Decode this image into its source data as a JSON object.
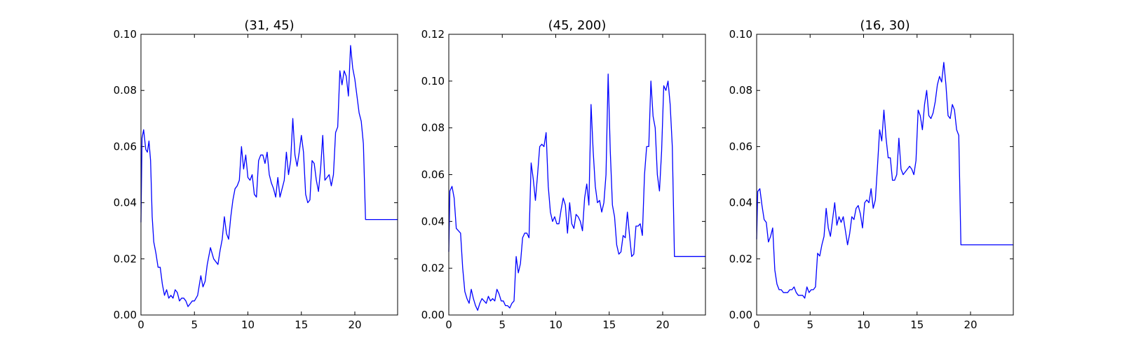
{
  "chart_data": [
    {
      "type": "line",
      "title": "(31, 45)",
      "xlim": [
        0,
        24
      ],
      "ylim": [
        0,
        0.1
      ],
      "xticks": [
        0,
        5,
        10,
        15,
        20
      ],
      "xtick_labels": [
        "0",
        "5",
        "10",
        "15",
        "20"
      ],
      "yticks": [
        0,
        0.02,
        0.04,
        0.06,
        0.08,
        0.1
      ],
      "ytick_labels": [
        "0.00",
        "0.02",
        "0.04",
        "0.06",
        "0.08",
        "0.10"
      ],
      "grid": false,
      "color": "#0000ff",
      "series": [
        {
          "x": [
            0,
            0.1,
            0.25,
            0.45,
            0.6,
            0.75,
            0.9,
            1.05,
            1.2,
            1.4,
            1.6,
            1.8,
            2.0,
            2.2,
            2.4,
            2.6,
            2.8,
            3.0,
            3.2,
            3.4,
            3.6,
            3.8,
            4.0,
            4.2,
            4.4,
            4.6,
            4.8,
            5.0,
            5.3,
            5.6,
            5.8,
            6.0,
            6.2,
            6.5,
            6.8,
            7.0,
            7.2,
            7.4,
            7.6,
            7.8,
            8.0,
            8.2,
            8.4,
            8.6,
            8.8,
            9.0,
            9.2,
            9.4,
            9.6,
            9.8,
            10.0,
            10.2,
            10.4,
            10.6,
            10.8,
            11.0,
            11.2,
            11.4,
            11.6,
            11.8,
            12.0,
            12.2,
            12.4,
            12.6,
            12.8,
            13.0,
            13.2,
            13.4,
            13.6,
            13.8,
            14.0,
            14.2,
            14.4,
            14.6,
            14.8,
            15.0,
            15.2,
            15.4,
            15.6,
            15.8,
            16.0,
            16.2,
            16.4,
            16.6,
            16.8,
            17.0,
            17.2,
            17.4,
            17.6,
            17.8,
            18.0,
            18.2,
            18.4,
            18.6,
            18.8,
            19.0,
            19.2,
            19.4,
            19.6,
            19.8,
            20.0,
            20.2,
            20.4,
            20.6,
            20.8,
            21.0,
            21.2,
            21.4,
            21.6,
            21.8,
            22.0,
            22.2,
            22.4,
            22.6,
            22.8,
            23.0,
            23.2,
            23.4,
            23.6,
            23.8,
            24.0
          ],
          "y": [
            0.033,
            0.063,
            0.066,
            0.059,
            0.058,
            0.062,
            0.055,
            0.035,
            0.026,
            0.022,
            0.017,
            0.017,
            0.011,
            0.007,
            0.009,
            0.006,
            0.007,
            0.006,
            0.009,
            0.008,
            0.005,
            0.006,
            0.006,
            0.005,
            0.003,
            0.004,
            0.005,
            0.005,
            0.007,
            0.014,
            0.01,
            0.012,
            0.018,
            0.024,
            0.02,
            0.019,
            0.018,
            0.023,
            0.027,
            0.035,
            0.029,
            0.027,
            0.035,
            0.041,
            0.045,
            0.046,
            0.048,
            0.06,
            0.052,
            0.057,
            0.049,
            0.048,
            0.05,
            0.043,
            0.042,
            0.055,
            0.057,
            0.057,
            0.054,
            0.058,
            0.05,
            0.047,
            0.045,
            0.042,
            0.049,
            0.042,
            0.045,
            0.048,
            0.058,
            0.05,
            0.055,
            0.07,
            0.057,
            0.053,
            0.058,
            0.064,
            0.058,
            0.043,
            0.04,
            0.041,
            0.055,
            0.054,
            0.048,
            0.044,
            0.052,
            0.064,
            0.048,
            0.049,
            0.05,
            0.046,
            0.05,
            0.065,
            0.067,
            0.087,
            0.082,
            0.087,
            0.085,
            0.078,
            0.096,
            0.088,
            0.084,
            0.078,
            0.072,
            0.069,
            0.061,
            0.034,
            0.034,
            0.034,
            0.034,
            0.034,
            0.034,
            0.034,
            0.034,
            0.034,
            0.034,
            0.034,
            0.034,
            0.034,
            0.034,
            0.034,
            0.034
          ]
        }
      ]
    },
    {
      "type": "line",
      "title": "(45, 200)",
      "xlim": [
        0,
        24
      ],
      "ylim": [
        0,
        0.12
      ],
      "xticks": [
        0,
        5,
        10,
        15,
        20
      ],
      "xtick_labels": [
        "0",
        "5",
        "10",
        "15",
        "20"
      ],
      "yticks": [
        0,
        0.02,
        0.04,
        0.06,
        0.08,
        0.1,
        0.12
      ],
      "ytick_labels": [
        "0.00",
        "0.02",
        "0.04",
        "0.06",
        "0.08",
        "0.10",
        "0.12"
      ],
      "grid": false,
      "color": "#0000ff",
      "series": [
        {
          "x": [
            0,
            0.1,
            0.3,
            0.5,
            0.7,
            0.9,
            1.1,
            1.3,
            1.5,
            1.7,
            1.9,
            2.1,
            2.3,
            2.5,
            2.7,
            2.9,
            3.1,
            3.3,
            3.5,
            3.7,
            3.9,
            4.1,
            4.3,
            4.5,
            4.7,
            4.9,
            5.1,
            5.3,
            5.5,
            5.7,
            5.9,
            6.1,
            6.3,
            6.5,
            6.7,
            6.9,
            7.1,
            7.3,
            7.5,
            7.7,
            7.9,
            8.1,
            8.3,
            8.5,
            8.7,
            8.9,
            9.1,
            9.3,
            9.5,
            9.7,
            9.9,
            10.1,
            10.3,
            10.5,
            10.7,
            10.9,
            11.1,
            11.3,
            11.5,
            11.7,
            11.9,
            12.1,
            12.3,
            12.5,
            12.7,
            12.9,
            13.1,
            13.3,
            13.5,
            13.7,
            13.9,
            14.1,
            14.3,
            14.5,
            14.7,
            14.9,
            15.1,
            15.3,
            15.5,
            15.7,
            15.9,
            16.1,
            16.3,
            16.5,
            16.7,
            16.9,
            17.1,
            17.3,
            17.5,
            17.7,
            17.9,
            18.1,
            18.3,
            18.5,
            18.7,
            18.9,
            19.1,
            19.3,
            19.5,
            19.7,
            19.9,
            20.1,
            20.3,
            20.5,
            20.7,
            20.9,
            21.1,
            21.3,
            21.5,
            21.7,
            21.9,
            22.1,
            22.3,
            22.5,
            22.7,
            22.9,
            23.1,
            23.3,
            23.5,
            23.7,
            23.9,
            24.0
          ],
          "y": [
            0.027,
            0.053,
            0.055,
            0.05,
            0.037,
            0.036,
            0.035,
            0.02,
            0.01,
            0.007,
            0.005,
            0.011,
            0.007,
            0.004,
            0.002,
            0.005,
            0.007,
            0.006,
            0.005,
            0.008,
            0.006,
            0.007,
            0.006,
            0.011,
            0.009,
            0.006,
            0.006,
            0.004,
            0.004,
            0.003,
            0.005,
            0.006,
            0.025,
            0.018,
            0.022,
            0.033,
            0.035,
            0.035,
            0.033,
            0.065,
            0.058,
            0.049,
            0.06,
            0.072,
            0.073,
            0.072,
            0.078,
            0.055,
            0.044,
            0.04,
            0.042,
            0.039,
            0.039,
            0.045,
            0.05,
            0.047,
            0.035,
            0.048,
            0.039,
            0.037,
            0.043,
            0.042,
            0.04,
            0.036,
            0.05,
            0.056,
            0.047,
            0.09,
            0.07,
            0.055,
            0.048,
            0.049,
            0.044,
            0.048,
            0.06,
            0.103,
            0.07,
            0.047,
            0.042,
            0.03,
            0.026,
            0.027,
            0.034,
            0.033,
            0.044,
            0.034,
            0.025,
            0.026,
            0.038,
            0.038,
            0.039,
            0.034,
            0.06,
            0.072,
            0.072,
            0.1,
            0.085,
            0.08,
            0.06,
            0.053,
            0.07,
            0.098,
            0.096,
            0.1,
            0.09,
            0.072,
            0.025,
            0.025,
            0.025,
            0.025,
            0.025,
            0.025,
            0.025,
            0.025,
            0.025,
            0.025,
            0.025,
            0.025,
            0.025,
            0.025,
            0.025,
            0.025
          ]
        }
      ]
    },
    {
      "type": "line",
      "title": "(16, 30)",
      "xlim": [
        0,
        24
      ],
      "ylim": [
        0,
        0.1
      ],
      "xticks": [
        0,
        5,
        10,
        15,
        20
      ],
      "xtick_labels": [
        "0",
        "5",
        "10",
        "15",
        "20"
      ],
      "yticks": [
        0,
        0.02,
        0.04,
        0.06,
        0.08,
        0.1
      ],
      "ytick_labels": [
        "0.00",
        "0.02",
        "0.04",
        "0.06",
        "0.08",
        "0.10"
      ],
      "grid": false,
      "color": "#0000ff",
      "series": [
        {
          "x": [
            0,
            0.1,
            0.3,
            0.5,
            0.7,
            0.9,
            1.1,
            1.3,
            1.5,
            1.7,
            1.9,
            2.1,
            2.3,
            2.5,
            2.7,
            2.9,
            3.1,
            3.3,
            3.5,
            3.7,
            3.9,
            4.1,
            4.3,
            4.5,
            4.7,
            4.9,
            5.1,
            5.3,
            5.5,
            5.7,
            5.9,
            6.1,
            6.3,
            6.5,
            6.7,
            6.9,
            7.1,
            7.3,
            7.5,
            7.7,
            7.9,
            8.1,
            8.3,
            8.5,
            8.7,
            8.9,
            9.1,
            9.3,
            9.5,
            9.7,
            9.9,
            10.1,
            10.3,
            10.5,
            10.7,
            10.9,
            11.1,
            11.3,
            11.5,
            11.7,
            11.9,
            12.1,
            12.3,
            12.5,
            12.7,
            12.9,
            13.1,
            13.3,
            13.5,
            13.7,
            13.9,
            14.1,
            14.3,
            14.5,
            14.7,
            14.9,
            15.1,
            15.3,
            15.5,
            15.7,
            15.9,
            16.1,
            16.3,
            16.5,
            16.7,
            16.9,
            17.1,
            17.3,
            17.5,
            17.7,
            17.9,
            18.1,
            18.3,
            18.5,
            18.7,
            18.9,
            19.1,
            19.3,
            19.5,
            19.7,
            19.9,
            20.1,
            20.3,
            20.5,
            20.7,
            20.9,
            21.1,
            21.3,
            21.5,
            21.7,
            21.9,
            22.1,
            22.3,
            22.5,
            22.7,
            22.9,
            23.1,
            23.3,
            23.5,
            23.7,
            23.9,
            24.0
          ],
          "y": [
            0.027,
            0.044,
            0.045,
            0.039,
            0.034,
            0.033,
            0.026,
            0.028,
            0.031,
            0.016,
            0.011,
            0.009,
            0.009,
            0.008,
            0.008,
            0.008,
            0.009,
            0.009,
            0.01,
            0.008,
            0.007,
            0.007,
            0.007,
            0.006,
            0.01,
            0.008,
            0.009,
            0.009,
            0.01,
            0.022,
            0.021,
            0.025,
            0.028,
            0.038,
            0.031,
            0.028,
            0.034,
            0.04,
            0.032,
            0.035,
            0.033,
            0.035,
            0.03,
            0.025,
            0.029,
            0.035,
            0.034,
            0.038,
            0.039,
            0.036,
            0.031,
            0.04,
            0.041,
            0.04,
            0.045,
            0.038,
            0.041,
            0.053,
            0.066,
            0.062,
            0.073,
            0.063,
            0.056,
            0.056,
            0.048,
            0.048,
            0.05,
            0.063,
            0.052,
            0.05,
            0.051,
            0.052,
            0.053,
            0.052,
            0.05,
            0.055,
            0.073,
            0.071,
            0.066,
            0.075,
            0.08,
            0.071,
            0.07,
            0.072,
            0.076,
            0.082,
            0.085,
            0.083,
            0.09,
            0.082,
            0.071,
            0.07,
            0.075,
            0.073,
            0.066,
            0.064,
            0.025,
            0.025,
            0.025,
            0.025,
            0.025,
            0.025,
            0.025,
            0.025,
            0.025,
            0.025,
            0.025,
            0.025,
            0.025,
            0.025,
            0.025,
            0.025,
            0.025,
            0.025,
            0.025,
            0.025,
            0.025,
            0.025,
            0.025,
            0.025,
            0.025,
            0.025
          ]
        }
      ]
    }
  ]
}
